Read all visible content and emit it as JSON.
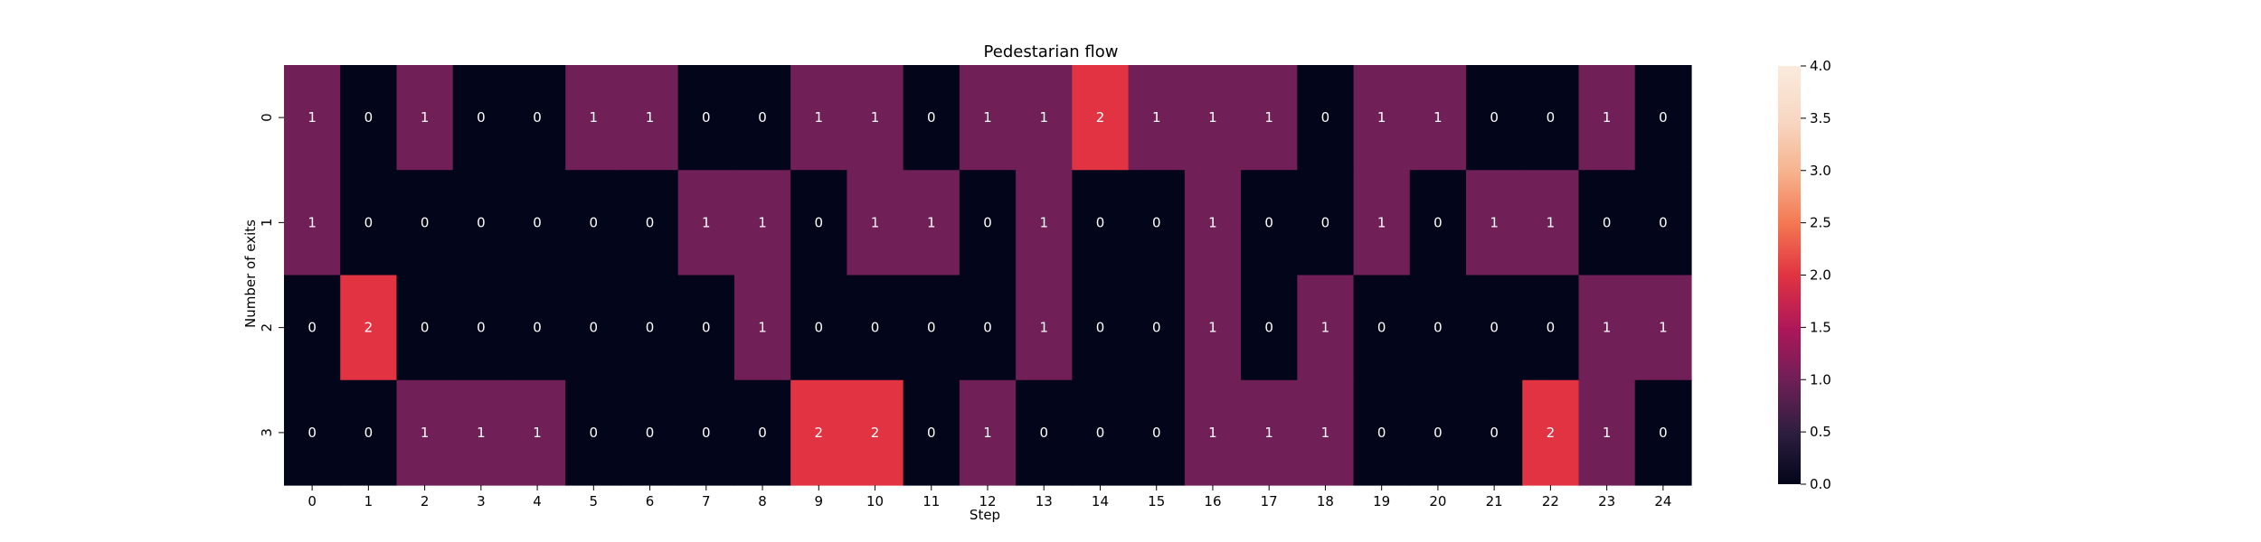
{
  "chart_data": {
    "type": "heatmap",
    "title": "Pedestarian flow",
    "xlabel": "Step",
    "ylabel": "Number of exits",
    "x_categories": [
      "0",
      "1",
      "2",
      "3",
      "4",
      "5",
      "6",
      "7",
      "8",
      "9",
      "10",
      "11",
      "12",
      "13",
      "14",
      "15",
      "16",
      "17",
      "18",
      "19",
      "20",
      "21",
      "22",
      "23",
      "24"
    ],
    "y_categories": [
      "0",
      "1",
      "2",
      "3"
    ],
    "values": [
      [
        1,
        0,
        1,
        0,
        0,
        1,
        1,
        0,
        0,
        1,
        1,
        0,
        1,
        1,
        2,
        1,
        1,
        1,
        0,
        1,
        1,
        0,
        0,
        1,
        0
      ],
      [
        1,
        0,
        0,
        0,
        0,
        0,
        0,
        1,
        1,
        0,
        1,
        1,
        0,
        1,
        0,
        0,
        1,
        0,
        0,
        1,
        0,
        1,
        1,
        0,
        0
      ],
      [
        0,
        2,
        0,
        0,
        0,
        0,
        0,
        0,
        1,
        0,
        0,
        0,
        0,
        1,
        0,
        0,
        1,
        0,
        1,
        0,
        0,
        0,
        0,
        1,
        1
      ],
      [
        0,
        0,
        1,
        1,
        1,
        0,
        0,
        0,
        0,
        2,
        2,
        0,
        1,
        0,
        0,
        0,
        1,
        1,
        1,
        0,
        0,
        0,
        2,
        1,
        0
      ]
    ],
    "colorbar": {
      "min": 0,
      "max": 4,
      "ticks": [
        "0.0",
        "0.5",
        "1.0",
        "1.5",
        "2.0",
        "2.5",
        "3.0",
        "3.5",
        "4.0"
      ]
    },
    "colors": {
      "0": "#03051a",
      "1": "#701f57",
      "2": "#e13342"
    },
    "annotations": true
  }
}
